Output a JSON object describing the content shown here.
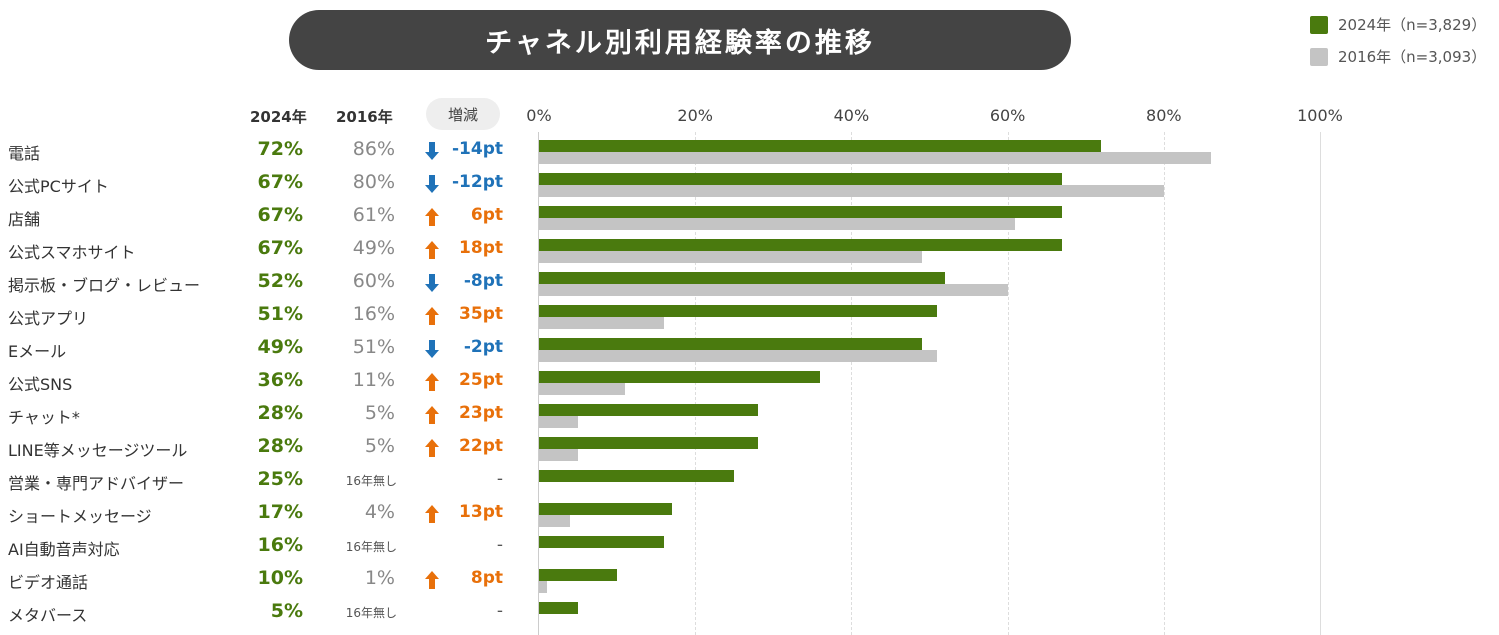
{
  "chart_data": {
    "type": "bar",
    "title": "チャネル別利用経験率の推移",
    "legend": [
      {
        "name": "2024年（n=3,829）",
        "color": "#4a7a0e"
      },
      {
        "name": "2016年（n=3,093）",
        "color": "#c4c4c4"
      }
    ],
    "legend_position": "top-right",
    "headers": {
      "y2024": "2024年",
      "y2016": "2016年",
      "diff": "増減"
    },
    "xlim": [
      0,
      100
    ],
    "xticks": [
      "0%",
      "20%",
      "40%",
      "60%",
      "80%",
      "100%"
    ],
    "categories": [
      "電話",
      "公式PCサイト",
      "店舗",
      "公式スマホサイト",
      "掲示板・ブログ・レビュー",
      "公式アプリ",
      "Eメール",
      "公式SNS",
      "チャット*",
      "LINE等メッセージツール",
      "営業・専門アドバイザー",
      "ショートメッセージ",
      "AI自動音声対応",
      "ビデオ通話",
      "メタバース"
    ],
    "series": [
      {
        "name": "2024年",
        "values": [
          72,
          67,
          67,
          67,
          52,
          51,
          49,
          36,
          28,
          28,
          25,
          17,
          16,
          10,
          5
        ]
      },
      {
        "name": "2016年",
        "values": [
          86,
          80,
          61,
          49,
          60,
          16,
          51,
          11,
          5,
          5,
          null,
          4,
          null,
          1,
          null
        ]
      }
    ],
    "diffs": [
      -14,
      -12,
      6,
      18,
      -8,
      35,
      -2,
      25,
      23,
      22,
      null,
      13,
      null,
      8,
      null
    ],
    "na_2016_label": "16年無し",
    "na_diff_label": "-",
    "colors": {
      "up": "#e8700a",
      "down": "#1f72b8"
    }
  }
}
